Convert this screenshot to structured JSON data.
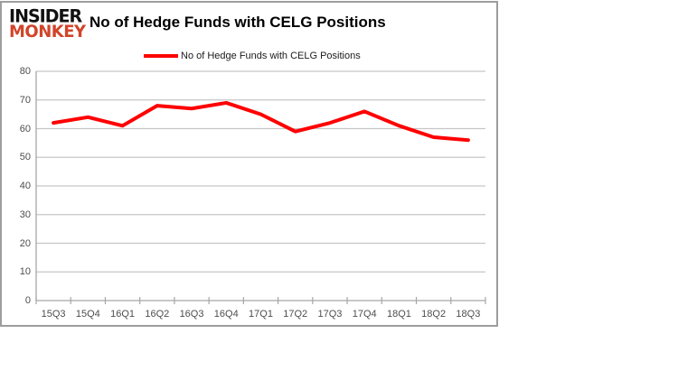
{
  "logo": {
    "line1": "INSIDER",
    "line2": "MONKEY",
    "line1_color": "#111111",
    "line2_color": "#d0452a"
  },
  "header": {
    "title": "No of Hedge Funds with CELG Positions"
  },
  "legend": {
    "label": "No of Hedge Funds with CELG Positions",
    "swatch_color": "#fe0000"
  },
  "chart_data": {
    "type": "line",
    "title": "No of Hedge Funds with CELG Positions",
    "categories": [
      "15Q3",
      "15Q4",
      "16Q1",
      "16Q2",
      "16Q3",
      "16Q4",
      "17Q1",
      "17Q2",
      "17Q3",
      "17Q4",
      "18Q1",
      "18Q2",
      "18Q3"
    ],
    "series": [
      {
        "name": "No of Hedge Funds with CELG Positions",
        "color": "#fe0000",
        "values": [
          62,
          64,
          61,
          68,
          67,
          69,
          65,
          59,
          62,
          66,
          61,
          57,
          56
        ]
      }
    ],
    "xlabel": "",
    "ylabel": "",
    "ylim": [
      0,
      80
    ],
    "yticks": [
      0,
      10,
      20,
      30,
      40,
      50,
      60,
      70,
      80
    ],
    "grid": "horizontal-only",
    "legend_position": "top",
    "colors": {
      "gridline": "#c6c6c6",
      "axis_line": "#a6a6a6",
      "tick_label": "#4d4d4d",
      "chart_border": "#9d9d9d",
      "background": "#ffffff"
    }
  }
}
